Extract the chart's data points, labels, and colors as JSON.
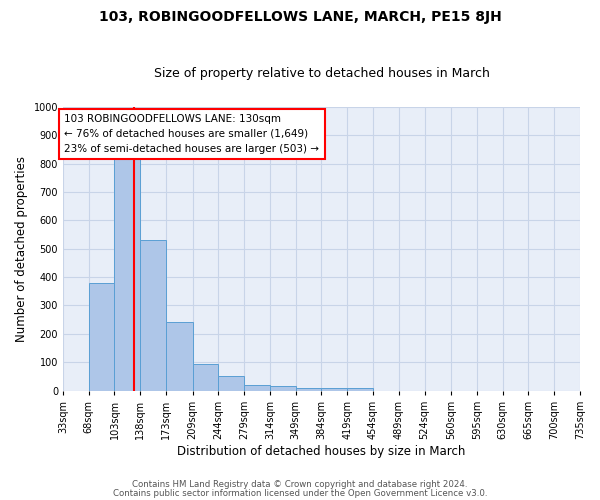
{
  "title1": "103, ROBINGOODFELLOWS LANE, MARCH, PE15 8JH",
  "title2": "Size of property relative to detached houses in March",
  "xlabel": "Distribution of detached houses by size in March",
  "ylabel": "Number of detached properties",
  "bin_edges": [
    33,
    68,
    103,
    138,
    173,
    209,
    244,
    279,
    314,
    349,
    384,
    419,
    454,
    489,
    524,
    560,
    595,
    630,
    665,
    700,
    735
  ],
  "bar_heights": [
    0,
    380,
    830,
    530,
    243,
    95,
    50,
    20,
    15,
    10,
    8,
    8,
    0,
    0,
    0,
    0,
    0,
    0,
    0,
    0
  ],
  "bar_color": "#aec6e8",
  "bar_edge_color": "#5a9fd4",
  "red_line_x": 130,
  "annotation_text": "103 ROBINGOODFELLOWS LANE: 130sqm\n← 76% of detached houses are smaller (1,649)\n23% of semi-detached houses are larger (503) →",
  "annotation_box_color": "white",
  "annotation_box_edge_color": "red",
  "red_line_color": "red",
  "ylim": [
    0,
    1000
  ],
  "yticks": [
    0,
    100,
    200,
    300,
    400,
    500,
    600,
    700,
    800,
    900,
    1000
  ],
  "grid_color": "#c8d4e8",
  "background_color": "#e8eef8",
  "footnote1": "Contains HM Land Registry data © Crown copyright and database right 2024.",
  "footnote2": "Contains public sector information licensed under the Open Government Licence v3.0.",
  "title1_fontsize": 10,
  "title2_fontsize": 9,
  "tick_fontsize": 7,
  "ylabel_fontsize": 8.5,
  "xlabel_fontsize": 8.5,
  "annotation_fontsize": 7.5
}
